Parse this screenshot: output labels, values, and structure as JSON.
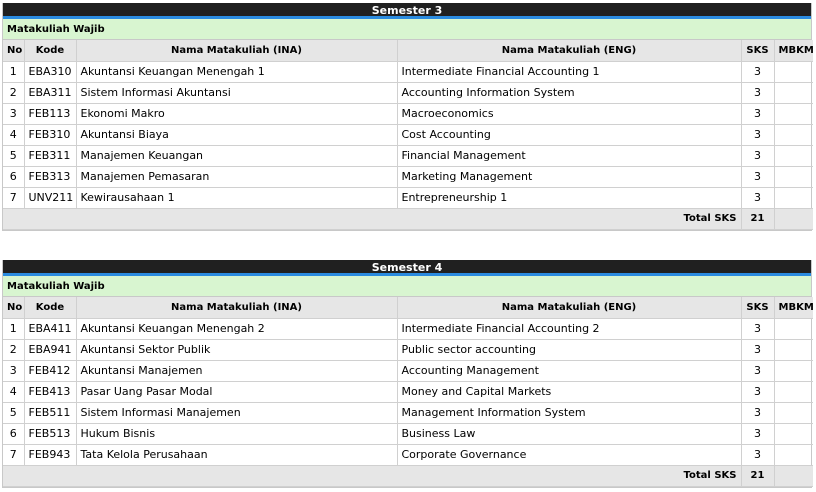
{
  "semesters": [
    {
      "title": "Semester 3",
      "category": "Matakuliah Wajib",
      "headers": {
        "no": "No",
        "kode": "Kode",
        "ina": "Nama Matakuliah (INA)",
        "eng": "Nama Matakuliah (ENG)",
        "sks": "SKS",
        "mbkm": "MBKM"
      },
      "rows": [
        {
          "no": "1",
          "kode": "EBA310",
          "ina": "Akuntansi Keuangan Menengah 1",
          "eng": "Intermediate Financial Accounting 1",
          "sks": "3",
          "mbkm": ""
        },
        {
          "no": "2",
          "kode": "EBA311",
          "ina": "Sistem Informasi Akuntansi",
          "eng": "Accounting Information System",
          "sks": "3",
          "mbkm": ""
        },
        {
          "no": "3",
          "kode": "FEB113",
          "ina": "Ekonomi Makro",
          "eng": "Macroeconomics",
          "sks": "3",
          "mbkm": ""
        },
        {
          "no": "4",
          "kode": "FEB310",
          "ina": "Akuntansi Biaya",
          "eng": "Cost Accounting",
          "sks": "3",
          "mbkm": ""
        },
        {
          "no": "5",
          "kode": "FEB311",
          "ina": "Manajemen Keuangan",
          "eng": "Financial Management",
          "sks": "3",
          "mbkm": ""
        },
        {
          "no": "6",
          "kode": "FEB313",
          "ina": "Manajemen Pemasaran",
          "eng": "Marketing Management",
          "sks": "3",
          "mbkm": ""
        },
        {
          "no": "7",
          "kode": "UNV211",
          "ina": "Kewirausahaan 1",
          "eng": "Entrepreneurship 1",
          "sks": "3",
          "mbkm": ""
        }
      ],
      "total_label": "Total SKS",
      "total_value": "21"
    },
    {
      "title": "Semester 4",
      "category": "Matakuliah Wajib",
      "headers": {
        "no": "No",
        "kode": "Kode",
        "ina": "Nama Matakuliah (INA)",
        "eng": "Nama Matakuliah (ENG)",
        "sks": "SKS",
        "mbkm": "MBKM"
      },
      "rows": [
        {
          "no": "1",
          "kode": "EBA411",
          "ina": "Akuntansi Keuangan Menengah 2",
          "eng": "Intermediate Financial Accounting 2",
          "sks": "3",
          "mbkm": ""
        },
        {
          "no": "2",
          "kode": "EBA941",
          "ina": "Akuntansi Sektor Publik",
          "eng": "Public sector accounting",
          "sks": "3",
          "mbkm": ""
        },
        {
          "no": "3",
          "kode": "FEB412",
          "ina": "Akuntansi Manajemen",
          "eng": "Accounting Management",
          "sks": "3",
          "mbkm": ""
        },
        {
          "no": "4",
          "kode": "FEB413",
          "ina": "Pasar Uang Pasar Modal",
          "eng": "Money and Capital Markets",
          "sks": "3",
          "mbkm": ""
        },
        {
          "no": "5",
          "kode": "FEB511",
          "ina": "Sistem Informasi Manajemen",
          "eng": "Management Information System",
          "sks": "3",
          "mbkm": ""
        },
        {
          "no": "6",
          "kode": "FEB513",
          "ina": "Hukum Bisnis",
          "eng": "Business Law",
          "sks": "3",
          "mbkm": ""
        },
        {
          "no": "7",
          "kode": "FEB943",
          "ina": "Tata Kelola Perusahaan",
          "eng": "Corporate Governance",
          "sks": "3",
          "mbkm": ""
        }
      ],
      "total_label": "Total SKS",
      "total_value": "21"
    }
  ]
}
